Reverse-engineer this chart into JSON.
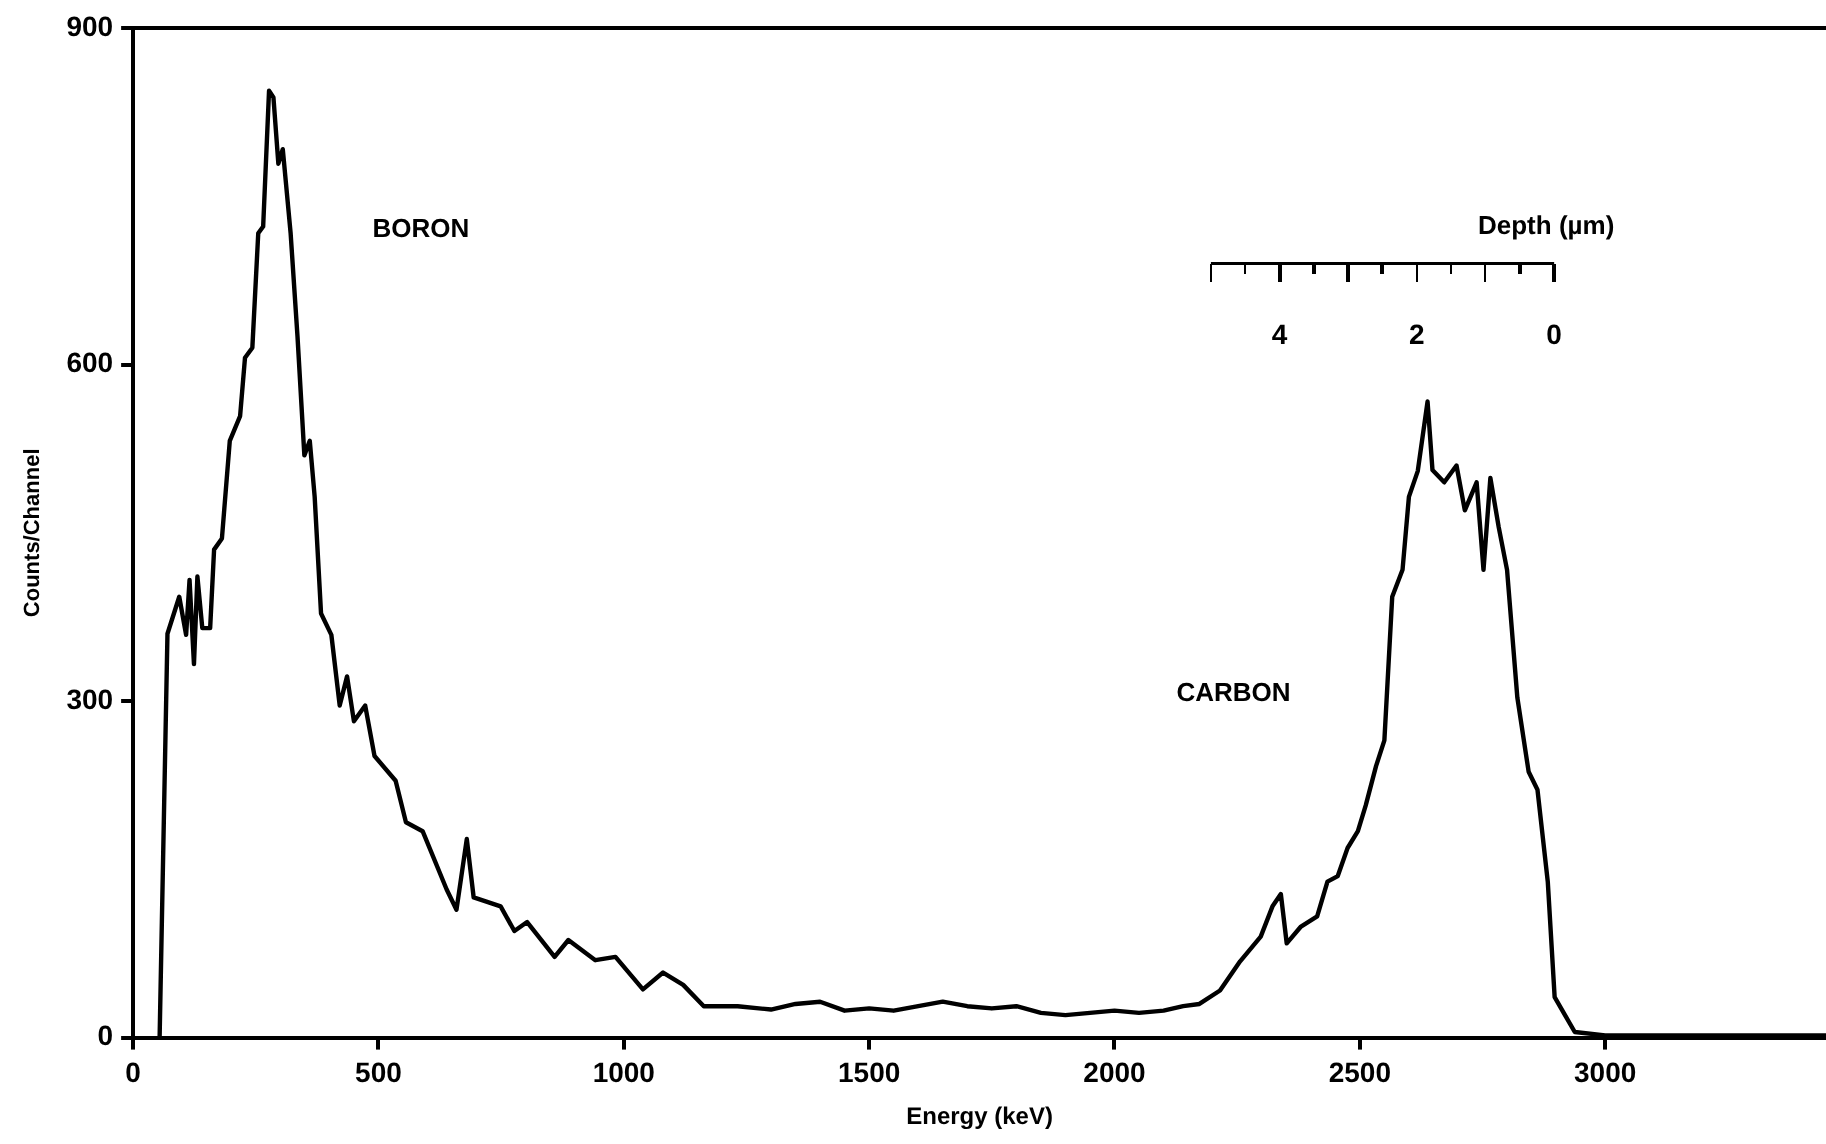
{
  "chart_data": {
    "type": "line",
    "xlabel": "Energy (keV)",
    "ylabel": "Counts/Channel",
    "x2label": "Depth (µm)",
    "x": [
      54,
      70,
      94,
      108,
      115,
      124,
      131,
      141,
      157,
      165,
      181,
      197,
      218,
      228,
      243,
      255,
      265,
      277,
      286,
      296,
      305,
      321,
      335,
      349,
      360,
      370,
      383,
      404,
      421,
      436,
      450,
      473,
      492,
      535,
      556,
      590,
      639,
      659,
      680,
      694,
      749,
      777,
      803,
      859,
      887,
      942,
      983,
      1039,
      1080,
      1121,
      1163,
      1232,
      1300,
      1350,
      1400,
      1450,
      1500,
      1550,
      1600,
      1650,
      1700,
      1750,
      1800,
      1850,
      1900,
      1950,
      2000,
      2050,
      2100,
      2140,
      2173,
      2215,
      2256,
      2298,
      2322,
      2339,
      2351,
      2380,
      2413,
      2434,
      2455,
      2475,
      2496,
      2512,
      2533,
      2550,
      2566,
      2587,
      2600,
      2618,
      2638,
      2648,
      2672,
      2697,
      2714,
      2738,
      2752,
      2766,
      2783,
      2800,
      2821,
      2844,
      2862,
      2883,
      2897,
      2938,
      3000,
      3100,
      3200,
      3300,
      3450
    ],
    "series": [
      {
        "color": "#000000",
        "values": [
          0,
          360,
          393,
          359,
          408,
          333,
          411,
          365,
          365,
          435,
          445,
          532,
          554,
          606,
          615,
          717,
          723,
          844,
          838,
          779,
          792,
          717,
          625,
          519,
          532,
          482,
          378,
          359,
          296,
          322,
          282,
          296,
          251,
          229,
          192,
          184,
          132,
          114,
          177,
          125,
          117,
          95,
          103,
          72,
          87,
          69,
          72,
          43,
          58,
          47,
          28,
          28,
          25,
          30,
          32,
          24,
          26,
          24,
          28,
          32,
          28,
          26,
          28,
          22,
          20,
          22,
          24,
          22,
          24,
          28,
          30,
          42,
          68,
          90,
          117,
          128,
          84,
          99,
          108,
          139,
          144,
          169,
          184,
          207,
          242,
          265,
          393,
          417,
          482,
          505,
          567,
          506,
          495,
          510,
          470,
          495,
          417,
          499,
          455,
          417,
          303,
          237,
          221,
          139,
          36,
          5,
          2,
          2,
          2,
          2,
          2
        ]
      }
    ],
    "xlim": [
      0,
      3450
    ],
    "xticks": [
      0,
      500,
      1000,
      1500,
      2000,
      2500,
      3000
    ],
    "ylim": [
      0,
      900
    ],
    "yticks": [
      0,
      300,
      600,
      900
    ],
    "x2lim": [
      20.7,
      -3.96
    ],
    "x2ticks": [
      4,
      2,
      0
    ],
    "annotations": [
      "BORON",
      "CARBON"
    ],
    "grid": false,
    "legend": false,
    "marker": "none",
    "line_style": "solid"
  }
}
